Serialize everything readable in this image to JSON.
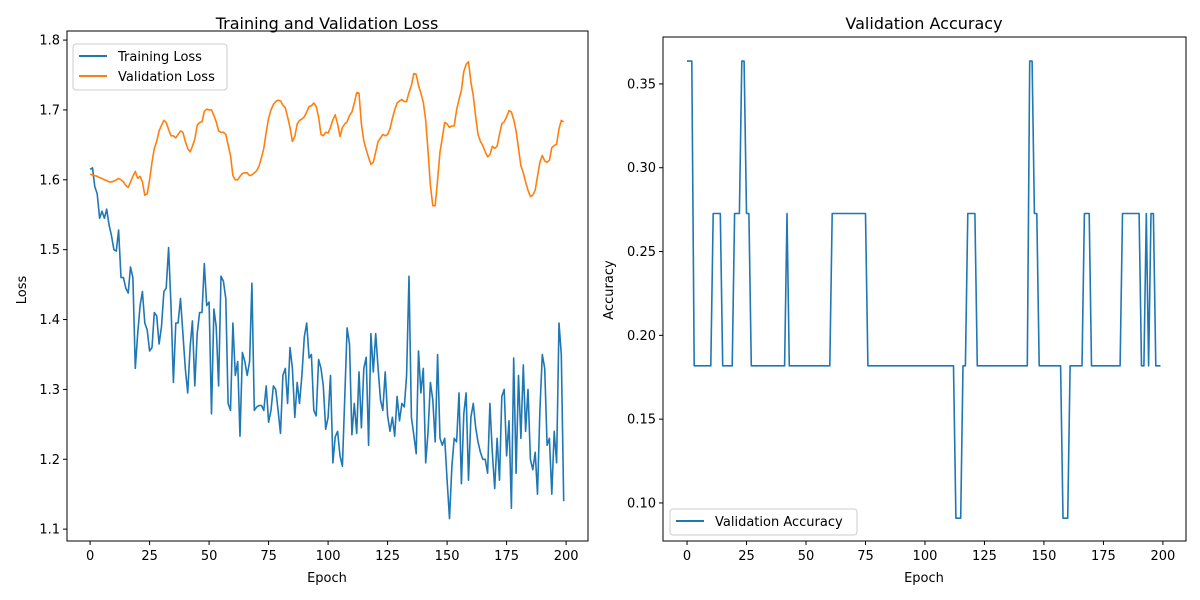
{
  "chart_data": [
    {
      "type": "line",
      "title": "Training and Validation Loss",
      "xlabel": "Epoch",
      "ylabel": "Loss",
      "xlim": [
        -9.7,
        209.2
      ],
      "ylim": [
        1.083,
        1.813
      ],
      "xticks": [
        0,
        25,
        50,
        75,
        100,
        125,
        150,
        175,
        200
      ],
      "yticks": [
        1.1,
        1.2,
        1.3,
        1.4,
        1.5,
        1.6,
        1.7,
        1.8
      ],
      "grid": false,
      "legend": "top-left",
      "series": [
        {
          "name": "Training Loss",
          "color": "#1f77b4",
          "values": [
            1.615,
            1.617,
            1.59,
            1.58,
            1.545,
            1.555,
            1.545,
            1.558,
            1.535,
            1.52,
            1.5,
            1.498,
            1.528,
            1.46,
            1.46,
            1.445,
            1.438,
            1.475,
            1.46,
            1.33,
            1.38,
            1.42,
            1.44,
            1.395,
            1.385,
            1.355,
            1.36,
            1.41,
            1.405,
            1.365,
            1.39,
            1.44,
            1.445,
            1.503,
            1.42,
            1.31,
            1.395,
            1.395,
            1.43,
            1.38,
            1.33,
            1.295,
            1.36,
            1.398,
            1.305,
            1.38,
            1.41,
            1.41,
            1.48,
            1.42,
            1.425,
            1.265,
            1.415,
            1.39,
            1.305,
            1.462,
            1.455,
            1.43,
            1.28,
            1.27,
            1.395,
            1.32,
            1.34,
            1.233,
            1.353,
            1.34,
            1.32,
            1.34,
            1.452,
            1.27,
            1.275,
            1.277,
            1.277,
            1.27,
            1.305,
            1.253,
            1.27,
            1.305,
            1.3,
            1.27,
            1.237,
            1.32,
            1.33,
            1.28,
            1.36,
            1.33,
            1.26,
            1.31,
            1.28,
            1.32,
            1.375,
            1.395,
            1.345,
            1.35,
            1.27,
            1.262,
            1.343,
            1.33,
            1.305,
            1.243,
            1.26,
            1.32,
            1.195,
            1.232,
            1.24,
            1.205,
            1.19,
            1.29,
            1.388,
            1.365,
            1.235,
            1.28,
            1.237,
            1.325,
            1.245,
            1.33,
            1.346,
            1.22,
            1.38,
            1.325,
            1.38,
            1.33,
            1.285,
            1.27,
            1.325,
            1.262,
            1.24,
            1.26,
            1.233,
            1.29,
            1.255,
            1.28,
            1.275,
            1.32,
            1.462,
            1.26,
            1.235,
            1.208,
            1.355,
            1.295,
            1.33,
            1.195,
            1.24,
            1.31,
            1.285,
            1.225,
            1.35,
            1.23,
            1.22,
            1.23,
            1.17,
            1.115,
            1.19,
            1.23,
            1.225,
            1.295,
            1.165,
            1.265,
            1.295,
            1.17,
            1.26,
            1.28,
            1.245,
            1.225,
            1.21,
            1.2,
            1.2,
            1.18,
            1.28,
            1.21,
            1.158,
            1.23,
            1.17,
            1.29,
            1.3,
            1.205,
            1.255,
            1.13,
            1.345,
            1.18,
            1.32,
            1.23,
            1.335,
            1.24,
            1.3,
            1.2,
            1.185,
            1.21,
            1.15,
            1.27,
            1.35,
            1.33,
            1.22,
            1.23,
            1.15,
            1.24,
            1.195,
            1.395,
            1.35,
            1.14
          ]
        },
        {
          "name": "Validation Loss",
          "color": "#ff7f0e",
          "values": [
            1.608,
            1.607,
            1.606,
            1.605,
            1.603,
            1.602,
            1.6,
            1.599,
            1.597,
            1.597,
            1.598,
            1.6,
            1.602,
            1.6,
            1.597,
            1.592,
            1.589,
            1.597,
            1.605,
            1.612,
            1.602,
            1.605,
            1.597,
            1.578,
            1.58,
            1.6,
            1.625,
            1.645,
            1.655,
            1.67,
            1.678,
            1.685,
            1.682,
            1.672,
            1.663,
            1.663,
            1.66,
            1.665,
            1.67,
            1.668,
            1.655,
            1.645,
            1.64,
            1.648,
            1.658,
            1.678,
            1.682,
            1.683,
            1.698,
            1.701,
            1.7,
            1.7,
            1.692,
            1.683,
            1.67,
            1.668,
            1.668,
            1.665,
            1.65,
            1.635,
            1.606,
            1.6,
            1.6,
            1.605,
            1.609,
            1.61,
            1.61,
            1.606,
            1.607,
            1.61,
            1.613,
            1.62,
            1.632,
            1.645,
            1.668,
            1.688,
            1.7,
            1.708,
            1.712,
            1.714,
            1.713,
            1.707,
            1.703,
            1.69,
            1.675,
            1.655,
            1.662,
            1.68,
            1.685,
            1.687,
            1.69,
            1.697,
            1.705,
            1.706,
            1.71,
            1.705,
            1.69,
            1.665,
            1.663,
            1.668,
            1.667,
            1.675,
            1.686,
            1.693,
            1.68,
            1.662,
            1.675,
            1.68,
            1.683,
            1.692,
            1.697,
            1.71,
            1.725,
            1.724,
            1.68,
            1.656,
            1.643,
            1.632,
            1.622,
            1.625,
            1.64,
            1.655,
            1.66,
            1.665,
            1.663,
            1.665,
            1.673,
            1.688,
            1.7,
            1.71,
            1.713,
            1.715,
            1.712,
            1.712,
            1.725,
            1.735,
            1.752,
            1.751,
            1.735,
            1.724,
            1.711,
            1.685,
            1.64,
            1.592,
            1.563,
            1.563,
            1.6,
            1.64,
            1.66,
            1.682,
            1.68,
            1.675,
            1.677,
            1.677,
            1.7,
            1.715,
            1.728,
            1.755,
            1.765,
            1.769,
            1.74,
            1.72,
            1.69,
            1.665,
            1.655,
            1.649,
            1.64,
            1.633,
            1.636,
            1.648,
            1.645,
            1.648,
            1.665,
            1.68,
            1.683,
            1.69,
            1.699,
            1.697,
            1.686,
            1.67,
            1.645,
            1.62,
            1.61,
            1.597,
            1.585,
            1.576,
            1.578,
            1.585,
            1.605,
            1.625,
            1.635,
            1.627,
            1.625,
            1.628,
            1.646,
            1.649,
            1.651,
            1.673,
            1.685,
            1.683
          ]
        }
      ]
    },
    {
      "type": "line",
      "title": "Validation Accuracy",
      "xlabel": "Epoch",
      "ylabel": "Accuracy",
      "xlim": [
        -10.1,
        209.7
      ],
      "ylim": [
        0.0773,
        0.378
      ],
      "xticks": [
        0,
        25,
        50,
        75,
        100,
        125,
        150,
        175,
        200
      ],
      "yticks": [
        0.1,
        0.15,
        0.2,
        0.25,
        0.3,
        0.35
      ],
      "grid": false,
      "legend": "bottom-left",
      "series": [
        {
          "name": "Validation Accuracy",
          "color": "#1f77b4",
          "segments": [
            [
              0,
              2,
              0.3636
            ],
            [
              3,
              10,
              0.1818
            ],
            [
              11,
              14,
              0.2727
            ],
            [
              15,
              19,
              0.1818
            ],
            [
              20,
              22,
              0.2727
            ],
            [
              23,
              24,
              0.3636
            ],
            [
              25,
              26,
              0.2727
            ],
            [
              27,
              41,
              0.1818
            ],
            [
              42,
              42,
              0.2727
            ],
            [
              43,
              60,
              0.1818
            ],
            [
              61,
              75,
              0.2727
            ],
            [
              76,
              112,
              0.1818
            ],
            [
              113,
              115,
              0.0909
            ],
            [
              116,
              117,
              0.1818
            ],
            [
              118,
              121,
              0.2727
            ],
            [
              122,
              143,
              0.1818
            ],
            [
              144,
              145,
              0.3636
            ],
            [
              146,
              147,
              0.2727
            ],
            [
              148,
              157,
              0.1818
            ],
            [
              158,
              160,
              0.0909
            ],
            [
              161,
              166,
              0.1818
            ],
            [
              167,
              169,
              0.2727
            ],
            [
              170,
              182,
              0.1818
            ],
            [
              183,
              190,
              0.2727
            ],
            [
              191,
              192,
              0.1818
            ],
            [
              193,
              193,
              0.2727
            ],
            [
              194,
              194,
              0.1818
            ],
            [
              195,
              196,
              0.2727
            ],
            [
              197,
              199,
              0.1818
            ]
          ]
        }
      ]
    }
  ]
}
